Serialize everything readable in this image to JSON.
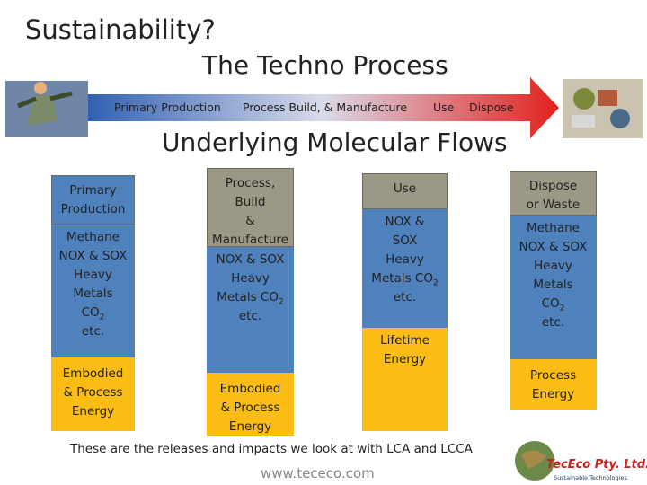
{
  "header": {
    "title": "Sustainability?",
    "subtitle": "The Techno Process"
  },
  "process_arrow": {
    "labels": [
      "Primary Production",
      "Process Build, & Manufacture",
      "Use",
      "Dispose"
    ]
  },
  "section_title": "Underlying Molecular Flows",
  "columns": [
    {
      "segments": [
        {
          "lines": [
            "Primary",
            "Production"
          ]
        },
        {
          "lines": [
            "Methane",
            "NOX & SOX",
            "Heavy",
            "Metals",
            {
              "text": "CO",
              "sub": "2"
            },
            "etc."
          ]
        },
        {
          "lines": [
            "Embodied",
            "& Process",
            "Energy"
          ]
        }
      ]
    },
    {
      "segments": [
        {
          "lines": [
            "Process,",
            "Build",
            "&",
            "Manufacture"
          ]
        },
        {
          "lines": [
            "NOX & SOX",
            "Heavy",
            {
              "text": "Metals CO",
              "sub": "2"
            },
            "etc."
          ]
        },
        {
          "lines": [
            "Embodied",
            "& Process",
            "Energy"
          ]
        }
      ]
    },
    {
      "segments": [
        {
          "lines": [
            "Use"
          ]
        },
        {
          "lines": [
            "NOX &",
            "SOX",
            "Heavy",
            {
              "text": "Metals CO",
              "sub": "2"
            },
            "etc."
          ]
        },
        {
          "lines": [
            "Lifetime",
            "Energy"
          ]
        }
      ]
    },
    {
      "segments": [
        {
          "lines": [
            "Dispose",
            "or Waste"
          ]
        },
        {
          "lines": [
            "Methane",
            "NOX & SOX",
            "Heavy",
            "Metals",
            {
              "text": "CO",
              "sub": "2"
            },
            "etc."
          ]
        },
        {
          "lines": [
            "Process",
            "Energy"
          ]
        }
      ]
    }
  ],
  "footer": {
    "note": "These are the releases and impacts we look at with LCA and LCCA",
    "url": "www.tececo.com"
  },
  "logo": {
    "name": "TecEco Pty. Ltd.",
    "tagline": "Sustainable Technologies"
  }
}
